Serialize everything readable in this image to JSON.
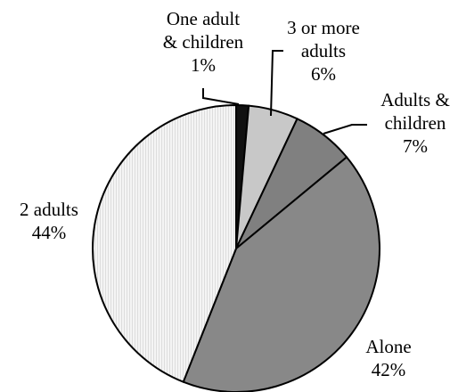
{
  "chart_data": {
    "type": "pie",
    "title": "",
    "start_angle_deg": 0,
    "direction": "clockwise",
    "slices": [
      {
        "label_lines": [
          "One adult",
          "& children"
        ],
        "percent_label": "1%",
        "value": 1.4,
        "color": "#111111",
        "pattern": "solid"
      },
      {
        "label_lines": [
          "3 or more",
          "adults"
        ],
        "percent_label": "6%",
        "value": 5.6,
        "color": "#c8c8c8",
        "pattern": "solid"
      },
      {
        "label_lines": [
          "Adults &",
          "children"
        ],
        "percent_label": "7%",
        "value": 7.0,
        "color": "#808080",
        "pattern": "solid"
      },
      {
        "label_lines": [
          "Alone"
        ],
        "percent_label": "42%",
        "value": 42.0,
        "color": "#888888",
        "pattern": "solid"
      },
      {
        "label_lines": [
          "2 adults"
        ],
        "percent_label": "44%",
        "value": 44.0,
        "color": "#f2f2f2",
        "pattern": "vertical-lines"
      }
    ]
  }
}
